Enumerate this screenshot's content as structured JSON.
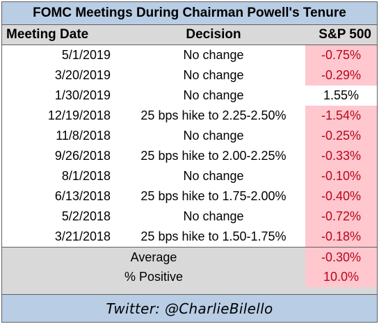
{
  "title": "FOMC Meetings During Chairman Powell's Tenure",
  "headers": {
    "date": "Meeting Date",
    "decision": "Decision",
    "sp500": "S&P 500"
  },
  "rows": [
    {
      "date": "5/1/2019",
      "decision": "No change",
      "sp500": "-0.75%",
      "negative": true
    },
    {
      "date": "3/20/2019",
      "decision": "No change",
      "sp500": "-0.29%",
      "negative": true
    },
    {
      "date": "1/30/2019",
      "decision": "No change",
      "sp500": "1.55%",
      "negative": false
    },
    {
      "date": "12/19/2018",
      "decision": "25 bps hike to 2.25-2.50%",
      "sp500": "-1.54%",
      "negative": true
    },
    {
      "date": "11/8/2018",
      "decision": "No change",
      "sp500": "-0.25%",
      "negative": true
    },
    {
      "date": "9/26/2018",
      "decision": "25 bps hike to 2.00-2.25%",
      "sp500": "-0.33%",
      "negative": true
    },
    {
      "date": "8/1/2018",
      "decision": "No change",
      "sp500": "-0.10%",
      "negative": true
    },
    {
      "date": "6/13/2018",
      "decision": "25 bps hike to 1.75-2.00%",
      "sp500": "-0.40%",
      "negative": true
    },
    {
      "date": "5/2/2018",
      "decision": "No change",
      "sp500": "-0.72%",
      "negative": true
    },
    {
      "date": "3/21/2018",
      "decision": "25 bps hike to 1.50-1.75%",
      "sp500": "-0.18%",
      "negative": true
    }
  ],
  "summary": {
    "average_label": "Average",
    "average_value": "-0.30%",
    "positive_label": "% Positive",
    "positive_value": "10.0%"
  },
  "footer": "Twitter: @CharlieBilello",
  "colors": {
    "title_bg": "#b9cde5",
    "header_bg": "#d9d9d9",
    "negative_bg": "#ffc7ce",
    "negative_text": "#b8061d"
  }
}
